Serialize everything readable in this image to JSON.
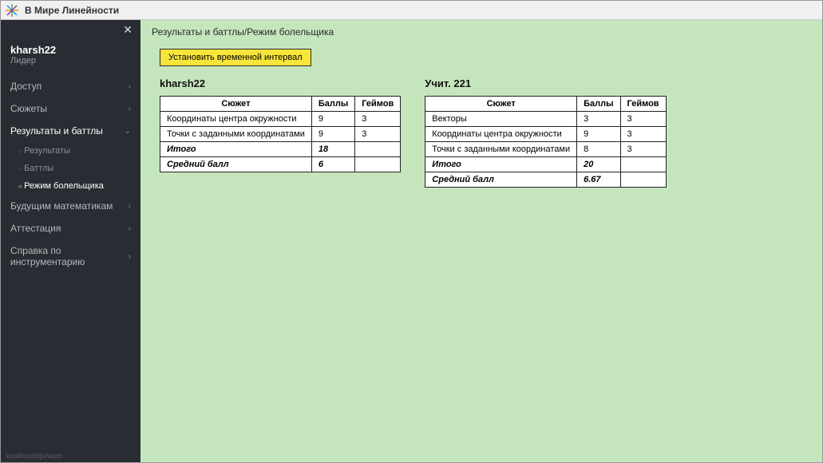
{
  "window": {
    "title": "В Мире Линейности"
  },
  "sidebar": {
    "user": {
      "name": "kharsh22",
      "role": "Лидер"
    },
    "nav": [
      {
        "label": "Доступ",
        "expanded": false
      },
      {
        "label": "Сюжеты",
        "expanded": false
      },
      {
        "label": "Результаты и баттлы",
        "expanded": true,
        "active": true,
        "children": [
          {
            "label": "Результаты",
            "active": false
          },
          {
            "label": "Баттлы",
            "active": false
          },
          {
            "label": "Режим болельщика",
            "active": true
          }
        ]
      },
      {
        "label": "Будущим математикам",
        "expanded": false
      },
      {
        "label": "Аттестация",
        "expanded": false
      },
      {
        "label": "Справка по инструментарию",
        "expanded": false
      }
    ],
    "footer": "localhost/pjs/wpm"
  },
  "main": {
    "breadcrumb": "Результаты и баттлы/Режим болельщика",
    "time_button": "Установить временной интервал",
    "columns": {
      "subject": "Сюжет",
      "score": "Баллы",
      "games": "Геймов"
    },
    "summary_labels": {
      "total": "Итого",
      "avg": "Средний балл"
    },
    "players": [
      {
        "title": "kharsh22",
        "rows": [
          {
            "subject": "Координаты центра окружности",
            "score": "9",
            "games": "3"
          },
          {
            "subject": "Точки с заданными координатами",
            "score": "9",
            "games": "3"
          }
        ],
        "total": "18",
        "avg": "6"
      },
      {
        "title": "Учит. 221",
        "rows": [
          {
            "subject": "Векторы",
            "score": "3",
            "games": "3"
          },
          {
            "subject": "Координаты центра окружности",
            "score": "9",
            "games": "3"
          },
          {
            "subject": "Точки с заданными координатами",
            "score": "8",
            "games": "3"
          }
        ],
        "total": "20",
        "avg": "6.67"
      }
    ]
  },
  "colors": {
    "main_bg": "#c5e6bd",
    "sidebar_bg": "#2a2c33",
    "button_bg": "#f7e53b",
    "table_bg": "#ffffff",
    "border": "#222222"
  }
}
